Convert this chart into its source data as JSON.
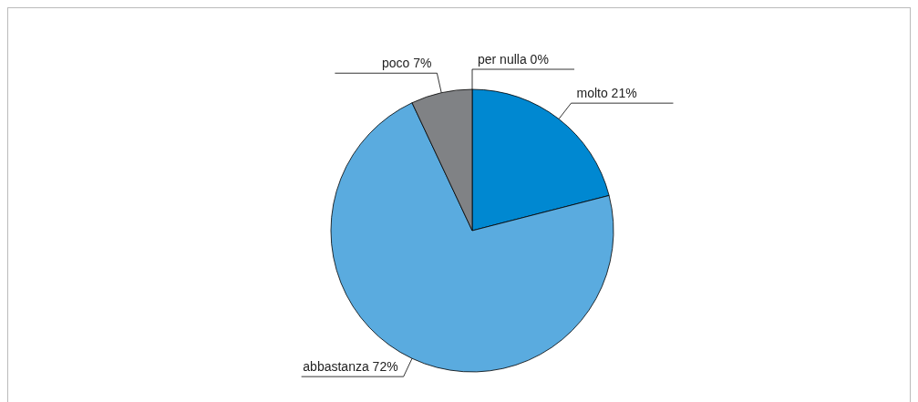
{
  "chart_data": {
    "type": "pie",
    "categories": [
      "molto",
      "abbastanza",
      "poco",
      "per nulla"
    ],
    "values": [
      21,
      72,
      7,
      0
    ],
    "value_labels": [
      "21%",
      "72%",
      "7%",
      "0%"
    ],
    "colors": [
      "#0088d1",
      "#5aabdf",
      "#808285",
      "#3c3c3c"
    ],
    "legend": false
  }
}
